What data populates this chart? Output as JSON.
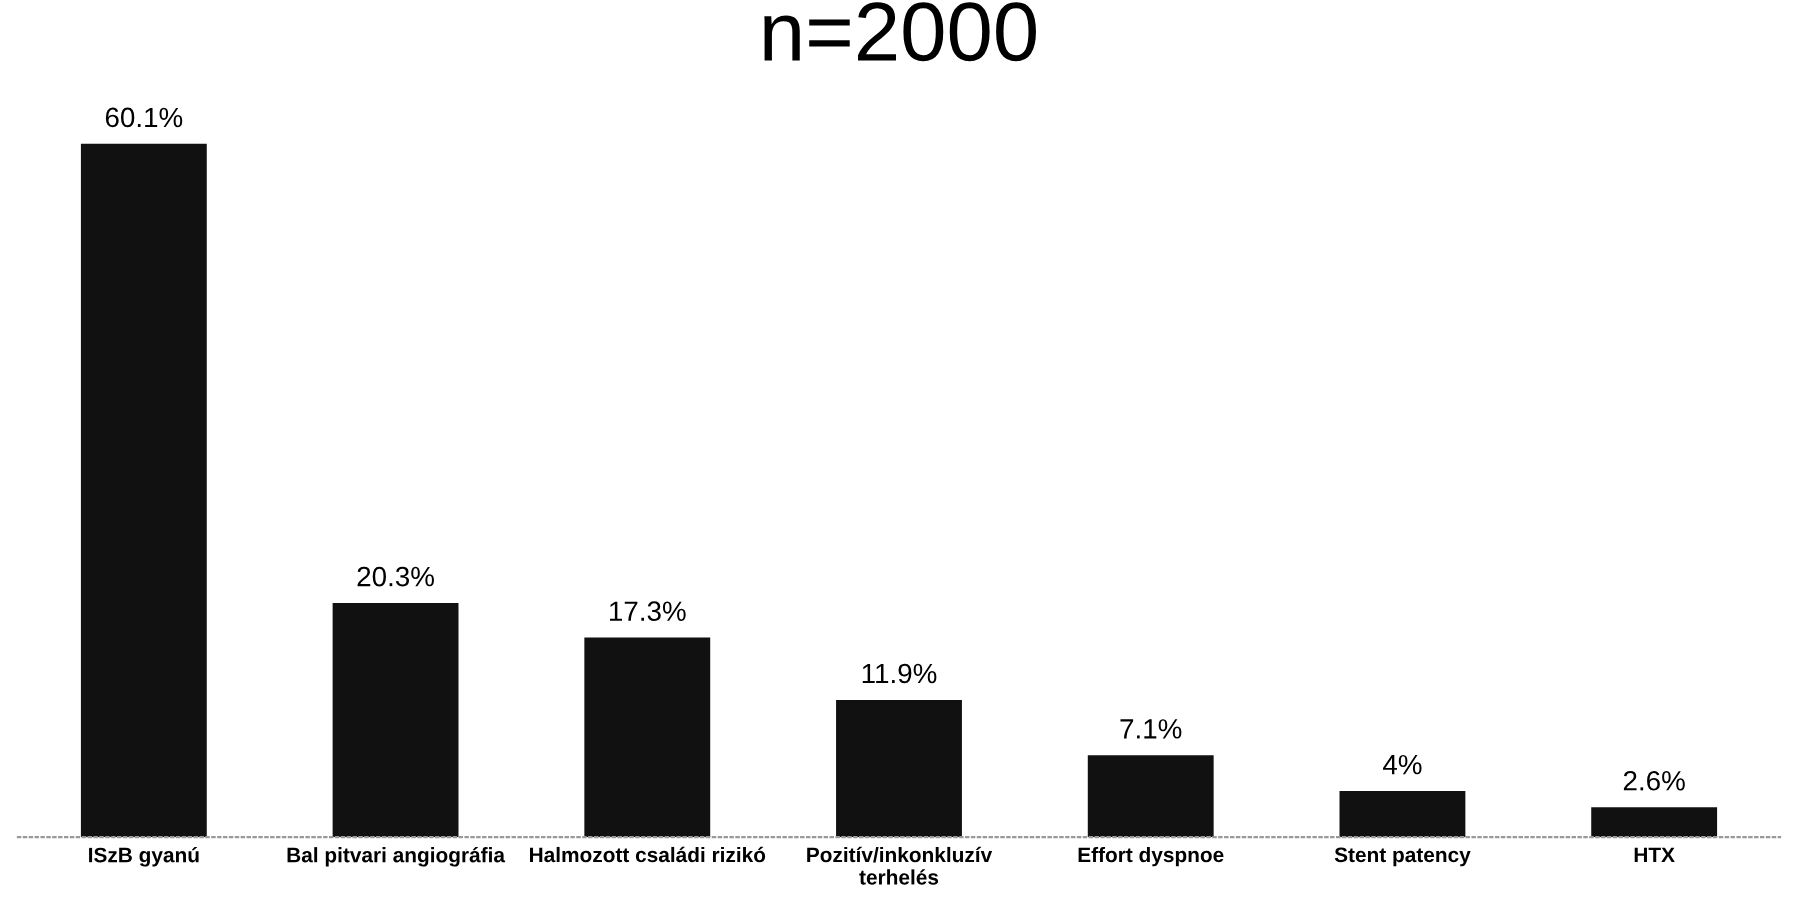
{
  "chart_data": {
    "type": "bar",
    "title": "n=2000",
    "categories": [
      "ISzB gyanú",
      "Bal pitvari angiográfia",
      "Halmozott családi rizikó",
      "Pozitív/inkonkluzív\nterhelés",
      "Effort dyspnoe",
      "Stent patency",
      "HTX"
    ],
    "values": [
      60.1,
      20.3,
      17.3,
      11.9,
      7.1,
      4,
      2.6
    ],
    "value_labels": [
      "60.1%",
      "20.3%",
      "17.3%",
      "11.9%",
      "7.1%",
      "4%",
      "2.6%"
    ],
    "color": "#111111",
    "tick_labels": "x",
    "grid": false,
    "legend": false
  }
}
